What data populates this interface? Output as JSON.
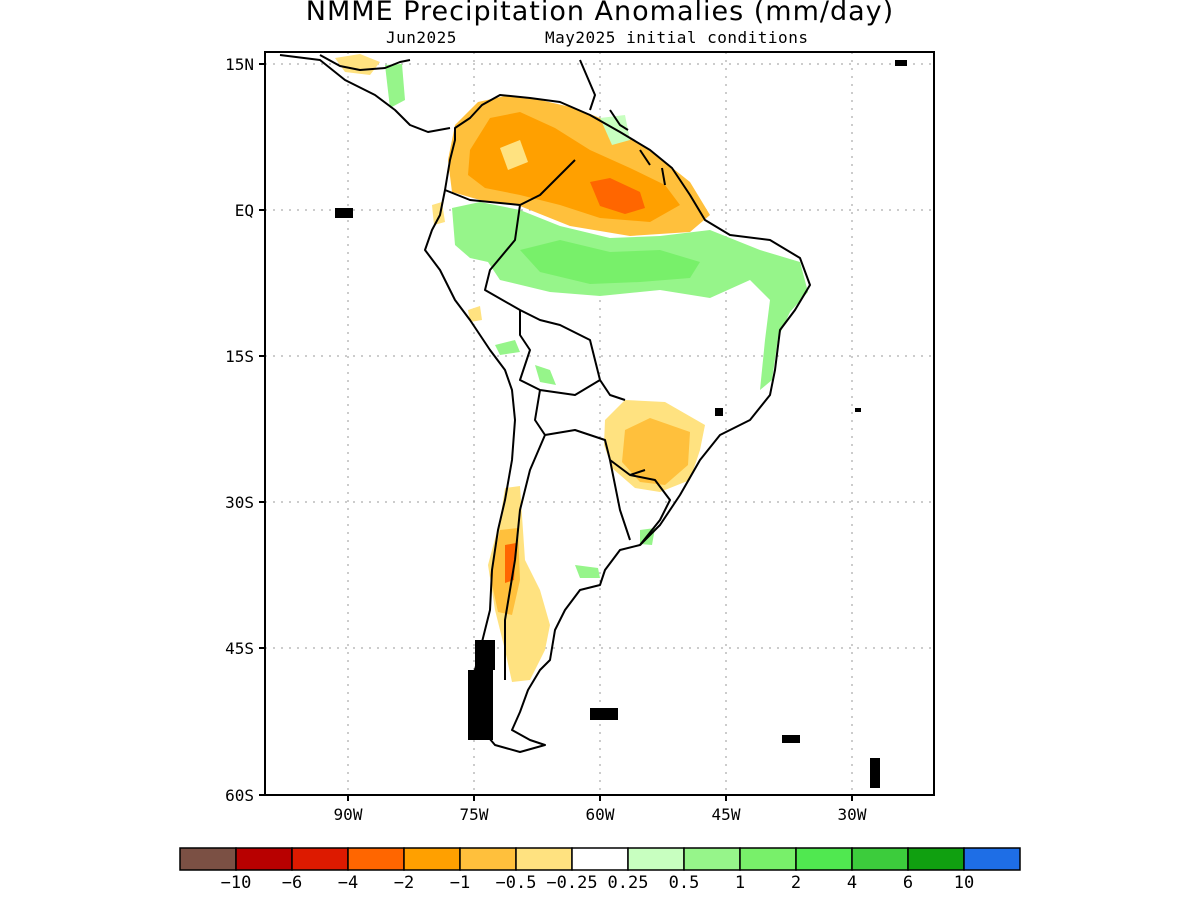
{
  "title": "NMME Precipitation Anomalies (mm/day)",
  "subtitle_left": "Jun2025",
  "subtitle_right": "May2025 initial conditions",
  "lat_labels": [
    "15N",
    "EQ",
    "15S",
    "30S",
    "45S",
    "60S"
  ],
  "lon_labels": [
    "90W",
    "75W",
    "60W",
    "45W",
    "30W"
  ],
  "colorbar": {
    "colors": [
      "#7b5044",
      "#b80000",
      "#dd1a00",
      "#ff6600",
      "#ffa000",
      "#ffc03c",
      "#ffe280",
      "#ffffff",
      "#c8ffc0",
      "#96f58a",
      "#78f06a",
      "#50e850",
      "#3ccc3c",
      "#10a010",
      "#1e6ee6"
    ],
    "labels": [
      "−10",
      "−6",
      "−4",
      "−2",
      "−1",
      "−0.5",
      "−0.25",
      "0.25",
      "0.5",
      "1",
      "2",
      "4",
      "6",
      "10"
    ]
  }
}
